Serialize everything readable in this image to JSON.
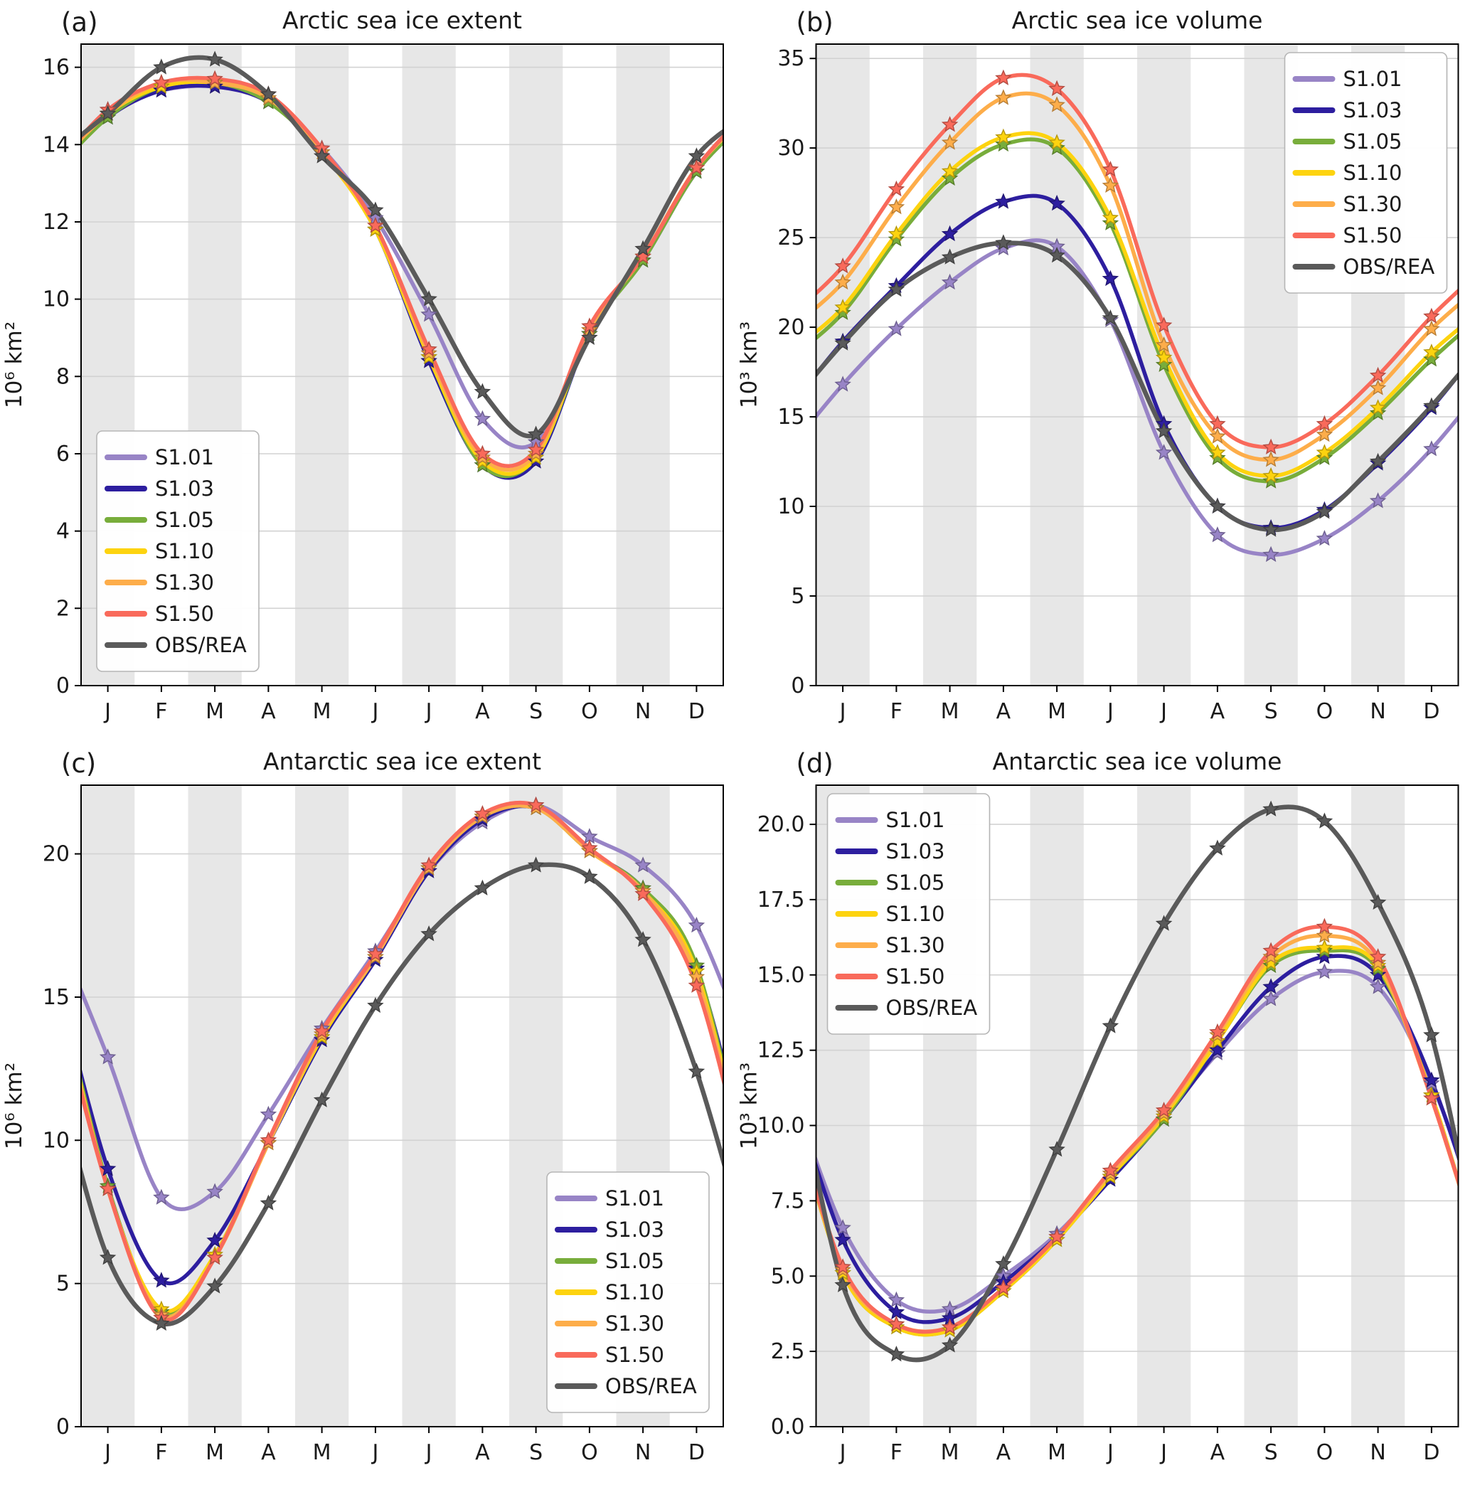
{
  "figure": {
    "background": "#ffffff",
    "band_color": "#e7e7e7",
    "grid_color": "#d2d2d2",
    "axis_color": "#000000",
    "months": [
      "J",
      "F",
      "M",
      "A",
      "M",
      "J",
      "J",
      "A",
      "S",
      "O",
      "N",
      "D"
    ],
    "series_colors": {
      "S1.01": "#9884c6",
      "S1.03": "#2d1e9f",
      "S1.05": "#78ad3b",
      "S1.10": "#fdd30f",
      "S1.30": "#fdad4a",
      "S1.50": "#f96a5b",
      "OBS/REA": "#5a5a5a"
    },
    "legend_labels": [
      "S1.01",
      "S1.03",
      "S1.05",
      "S1.10",
      "S1.30",
      "S1.50",
      "OBS/REA"
    ]
  },
  "chart_data": [
    {
      "id": "a",
      "type": "line",
      "panel_label": "(a)",
      "title": "Arctic sea ice extent",
      "ylabel": "10⁶ km²",
      "categories": [
        "J",
        "F",
        "M",
        "A",
        "M",
        "J",
        "J",
        "A",
        "S",
        "O",
        "N",
        "D"
      ],
      "ylim": [
        0,
        16.6
      ],
      "yticks": [
        0,
        2,
        4,
        6,
        8,
        10,
        12,
        14,
        16
      ],
      "ytick_labels": [
        "0",
        "2",
        "4",
        "6",
        "8",
        "10",
        "12",
        "14",
        "16"
      ],
      "legend_position": "lower-left",
      "grid": true,
      "series": [
        {
          "name": "S1.01",
          "values": [
            14.9,
            15.4,
            15.5,
            15.1,
            13.9,
            12.1,
            9.6,
            6.9,
            6.3,
            9.1,
            11.1,
            13.3
          ]
        },
        {
          "name": "S1.03",
          "values": [
            14.7,
            15.4,
            15.5,
            15.1,
            13.8,
            11.8,
            8.4,
            5.7,
            5.8,
            9.1,
            11.0,
            13.3
          ]
        },
        {
          "name": "S1.05",
          "values": [
            14.7,
            15.5,
            15.6,
            15.1,
            13.8,
            11.8,
            8.5,
            5.7,
            5.9,
            9.1,
            11.0,
            13.3
          ]
        },
        {
          "name": "S1.10",
          "values": [
            14.8,
            15.5,
            15.6,
            15.2,
            13.8,
            11.8,
            8.5,
            5.8,
            5.9,
            9.2,
            11.1,
            13.4
          ]
        },
        {
          "name": "S1.30",
          "values": [
            14.8,
            15.6,
            15.6,
            15.2,
            13.8,
            11.9,
            8.6,
            5.9,
            6.0,
            9.2,
            11.1,
            13.4
          ]
        },
        {
          "name": "S1.50",
          "values": [
            14.9,
            15.6,
            15.7,
            15.3,
            13.9,
            11.9,
            8.7,
            6.0,
            6.1,
            9.3,
            11.1,
            13.4
          ]
        },
        {
          "name": "OBS/REA",
          "values": [
            14.8,
            16.0,
            16.2,
            15.3,
            13.7,
            12.3,
            10.0,
            7.6,
            6.5,
            9.0,
            11.3,
            13.7
          ]
        }
      ]
    },
    {
      "id": "b",
      "type": "line",
      "panel_label": "(b)",
      "title": "Arctic sea ice volume",
      "ylabel": "10³ km³",
      "categories": [
        "J",
        "F",
        "M",
        "A",
        "M",
        "J",
        "J",
        "A",
        "S",
        "O",
        "N",
        "D"
      ],
      "ylim": [
        0,
        35.8
      ],
      "yticks": [
        0,
        5,
        10,
        15,
        20,
        25,
        30,
        35
      ],
      "ytick_labels": [
        "0",
        "5",
        "10",
        "15",
        "20",
        "25",
        "30",
        "35"
      ],
      "legend_position": "upper-right",
      "grid": true,
      "series": [
        {
          "name": "S1.01",
          "values": [
            16.8,
            19.9,
            22.5,
            24.4,
            24.5,
            20.4,
            13.0,
            8.4,
            7.3,
            8.2,
            10.3,
            13.2
          ]
        },
        {
          "name": "S1.03",
          "values": [
            19.2,
            22.3,
            25.2,
            27.0,
            26.9,
            22.7,
            14.6,
            10.0,
            8.8,
            9.8,
            12.4,
            15.5
          ]
        },
        {
          "name": "S1.05",
          "values": [
            20.8,
            24.9,
            28.3,
            30.2,
            30.0,
            25.8,
            17.9,
            12.7,
            11.4,
            12.7,
            15.2,
            18.2
          ]
        },
        {
          "name": "S1.10",
          "values": [
            21.1,
            25.2,
            28.7,
            30.6,
            30.3,
            26.1,
            18.3,
            13.0,
            11.7,
            13.0,
            15.5,
            18.6
          ]
        },
        {
          "name": "S1.30",
          "values": [
            22.5,
            26.7,
            30.3,
            32.8,
            32.4,
            27.9,
            19.0,
            13.9,
            12.6,
            14.0,
            16.6,
            19.9
          ]
        },
        {
          "name": "S1.50",
          "values": [
            23.4,
            27.7,
            31.3,
            33.9,
            33.3,
            28.8,
            20.1,
            14.6,
            13.3,
            14.6,
            17.3,
            20.6
          ]
        },
        {
          "name": "OBS/REA",
          "values": [
            19.1,
            22.1,
            23.9,
            24.7,
            24.0,
            20.5,
            14.2,
            10.0,
            8.7,
            9.7,
            12.5,
            15.6
          ]
        }
      ]
    },
    {
      "id": "c",
      "type": "line",
      "panel_label": "(c)",
      "title": "Antarctic sea ice extent",
      "ylabel": "10⁶ km²",
      "categories": [
        "J",
        "F",
        "M",
        "A",
        "M",
        "J",
        "J",
        "A",
        "S",
        "O",
        "N",
        "D"
      ],
      "ylim": [
        0,
        22.4
      ],
      "yticks": [
        0,
        5,
        10,
        15,
        20
      ],
      "ytick_labels": [
        "0",
        "5",
        "10",
        "15",
        "20"
      ],
      "legend_position": "lower-right",
      "grid": true,
      "series": [
        {
          "name": "S1.01",
          "values": [
            12.9,
            8.0,
            8.2,
            10.9,
            13.9,
            16.6,
            19.4,
            21.1,
            21.7,
            20.6,
            19.6,
            17.5
          ]
        },
        {
          "name": "S1.03",
          "values": [
            9.0,
            5.1,
            6.5,
            9.9,
            13.5,
            16.3,
            19.4,
            21.2,
            21.6,
            20.1,
            18.8,
            16.0
          ]
        },
        {
          "name": "S1.05",
          "values": [
            8.4,
            4.0,
            6.0,
            9.9,
            13.6,
            16.4,
            19.5,
            21.3,
            21.6,
            20.1,
            18.8,
            16.1
          ]
        },
        {
          "name": "S1.10",
          "values": [
            8.3,
            4.1,
            6.0,
            9.9,
            13.6,
            16.4,
            19.5,
            21.3,
            21.6,
            20.1,
            18.7,
            15.9
          ]
        },
        {
          "name": "S1.30",
          "values": [
            8.3,
            3.9,
            5.9,
            9.9,
            13.7,
            16.4,
            19.5,
            21.3,
            21.6,
            20.1,
            18.7,
            15.7
          ]
        },
        {
          "name": "S1.50",
          "values": [
            8.3,
            3.8,
            5.9,
            10.0,
            13.8,
            16.5,
            19.6,
            21.4,
            21.7,
            20.2,
            18.6,
            15.4
          ]
        },
        {
          "name": "OBS/REA",
          "values": [
            5.9,
            3.6,
            4.9,
            7.8,
            11.4,
            14.7,
            17.2,
            18.8,
            19.6,
            19.2,
            17.0,
            12.4
          ]
        }
      ]
    },
    {
      "id": "d",
      "type": "line",
      "panel_label": "(d)",
      "title": "Antarctic sea ice volume",
      "ylabel": "10³ km³",
      "categories": [
        "J",
        "F",
        "M",
        "A",
        "M",
        "J",
        "J",
        "A",
        "S",
        "O",
        "N",
        "D"
      ],
      "ylim": [
        0,
        21.3
      ],
      "yticks": [
        0,
        2.5,
        5,
        7.5,
        10,
        12.5,
        15,
        17.5,
        20
      ],
      "ytick_labels": [
        "0.0",
        "2.5",
        "5.0",
        "7.5",
        "10.0",
        "12.5",
        "15.0",
        "17.5",
        "20.0"
      ],
      "legend_position": "upper-left",
      "grid": true,
      "series": [
        {
          "name": "S1.01",
          "values": [
            6.6,
            4.2,
            3.9,
            5.0,
            6.4,
            8.3,
            10.3,
            12.4,
            14.2,
            15.1,
            14.6,
            11.4
          ]
        },
        {
          "name": "S1.03",
          "values": [
            6.2,
            3.8,
            3.6,
            4.8,
            6.3,
            8.2,
            10.2,
            12.5,
            14.6,
            15.6,
            15.0,
            11.5
          ]
        },
        {
          "name": "S1.05",
          "values": [
            5.1,
            3.3,
            3.2,
            4.5,
            6.2,
            8.3,
            10.2,
            12.8,
            15.3,
            15.8,
            15.2,
            11.0
          ]
        },
        {
          "name": "S1.10",
          "values": [
            5.1,
            3.3,
            3.2,
            4.5,
            6.2,
            8.3,
            10.3,
            12.8,
            15.4,
            15.9,
            15.3,
            11.0
          ]
        },
        {
          "name": "S1.30",
          "values": [
            5.2,
            3.4,
            3.3,
            4.6,
            6.3,
            8.4,
            10.4,
            13.0,
            15.6,
            16.3,
            15.4,
            10.9
          ]
        },
        {
          "name": "S1.50",
          "values": [
            5.3,
            3.4,
            3.3,
            4.6,
            6.3,
            8.5,
            10.5,
            13.1,
            15.8,
            16.6,
            15.6,
            10.9
          ]
        },
        {
          "name": "OBS/REA",
          "values": [
            4.7,
            2.4,
            2.7,
            5.4,
            9.2,
            13.3,
            16.7,
            19.2,
            20.5,
            20.1,
            17.4,
            13.0
          ]
        }
      ]
    }
  ]
}
